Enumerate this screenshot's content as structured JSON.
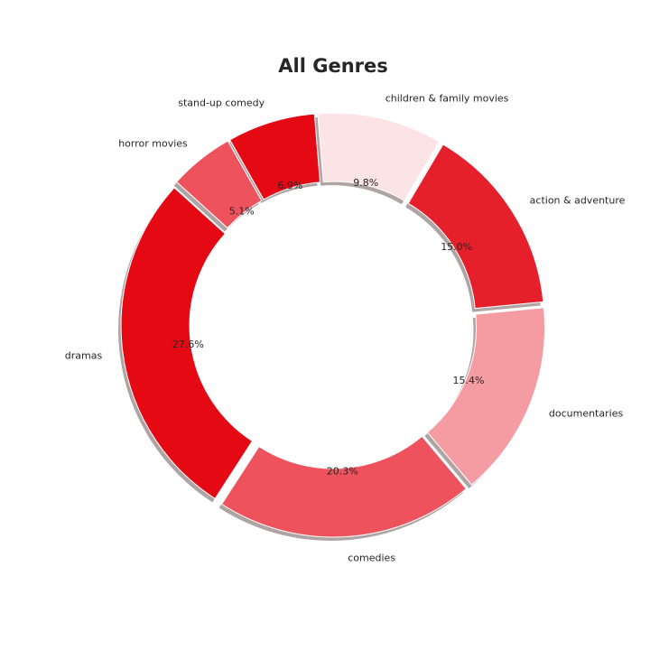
{
  "chart_data": {
    "type": "pie",
    "donut": true,
    "title": "All Genres",
    "categories": [
      "action & adventure",
      "children & family movies",
      "stand-up comedy",
      "horror movies",
      "dramas",
      "comedies",
      "documentaries"
    ],
    "values": [
      15.0,
      9.8,
      6.9,
      5.1,
      27.6,
      20.3,
      15.4
    ],
    "percent_labels": [
      "15.0%",
      "9.8%",
      "6.9%",
      "5.1%",
      "27.6%",
      "20.3%",
      "15.4%"
    ],
    "colors": [
      "#e6202b",
      "#fce4e6",
      "#e50914",
      "#ee535d",
      "#e50914",
      "#ee535d",
      "#f59ca3"
    ],
    "shadow": true,
    "legend": "none"
  }
}
